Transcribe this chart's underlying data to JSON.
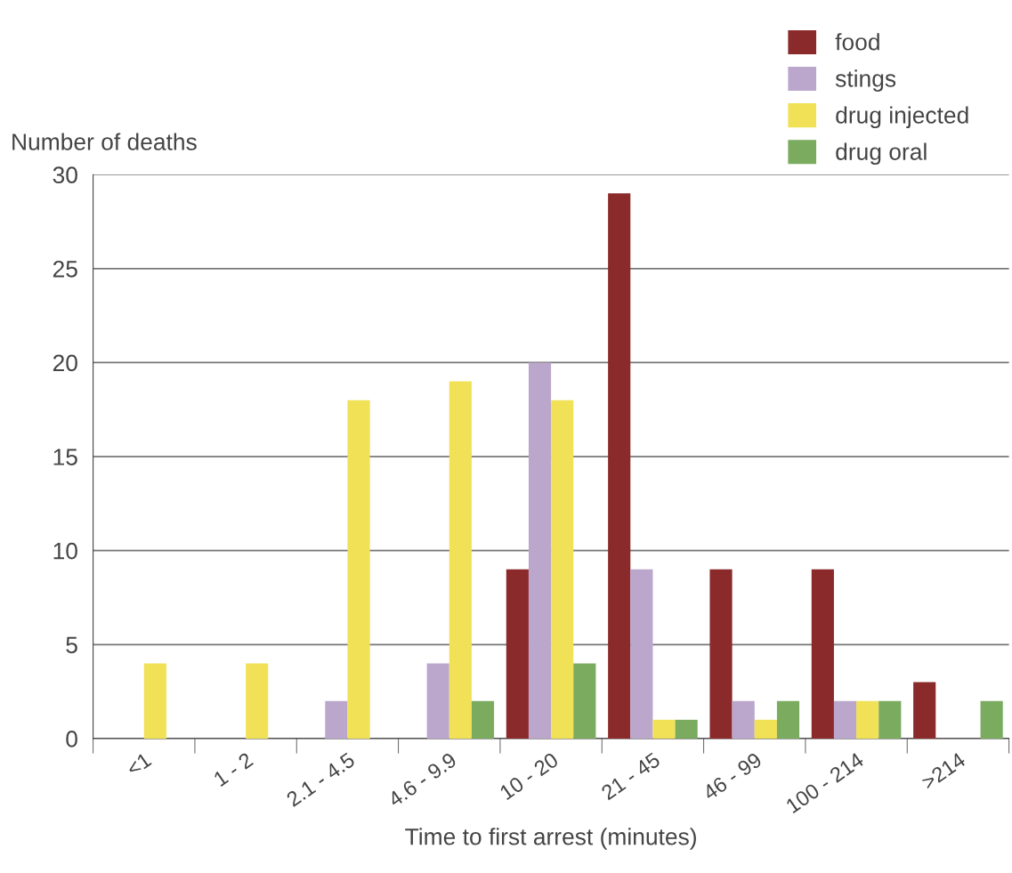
{
  "chart_data": {
    "type": "bar",
    "ylabel": "Number of deaths",
    "xlabel": "Time to first arrest (minutes)",
    "categories": [
      "<1",
      "1 - 2",
      "2.1 - 4.5",
      "4.6 - 9.9",
      "10 - 20",
      "21 - 45",
      "46 - 99",
      "100 - 214",
      ">214"
    ],
    "series": [
      {
        "name": "food",
        "color": "#8b2a2b",
        "values": [
          0,
          0,
          0,
          0,
          9,
          29,
          9,
          9,
          3
        ]
      },
      {
        "name": "stings",
        "color": "#bba6cc",
        "values": [
          0,
          0,
          2,
          4,
          20,
          9,
          2,
          2,
          0
        ]
      },
      {
        "name": "drug injected",
        "color": "#f0e156",
        "values": [
          4,
          4,
          18,
          19,
          18,
          1,
          1,
          2,
          0
        ]
      },
      {
        "name": "drug oral",
        "color": "#7aab5e",
        "values": [
          0,
          0,
          0,
          2,
          4,
          1,
          2,
          2,
          2
        ]
      }
    ],
    "ylim": [
      0,
      30
    ],
    "yticks": [
      0,
      5,
      10,
      15,
      20,
      25,
      30
    ],
    "grid": "y",
    "legend": "top right"
  }
}
